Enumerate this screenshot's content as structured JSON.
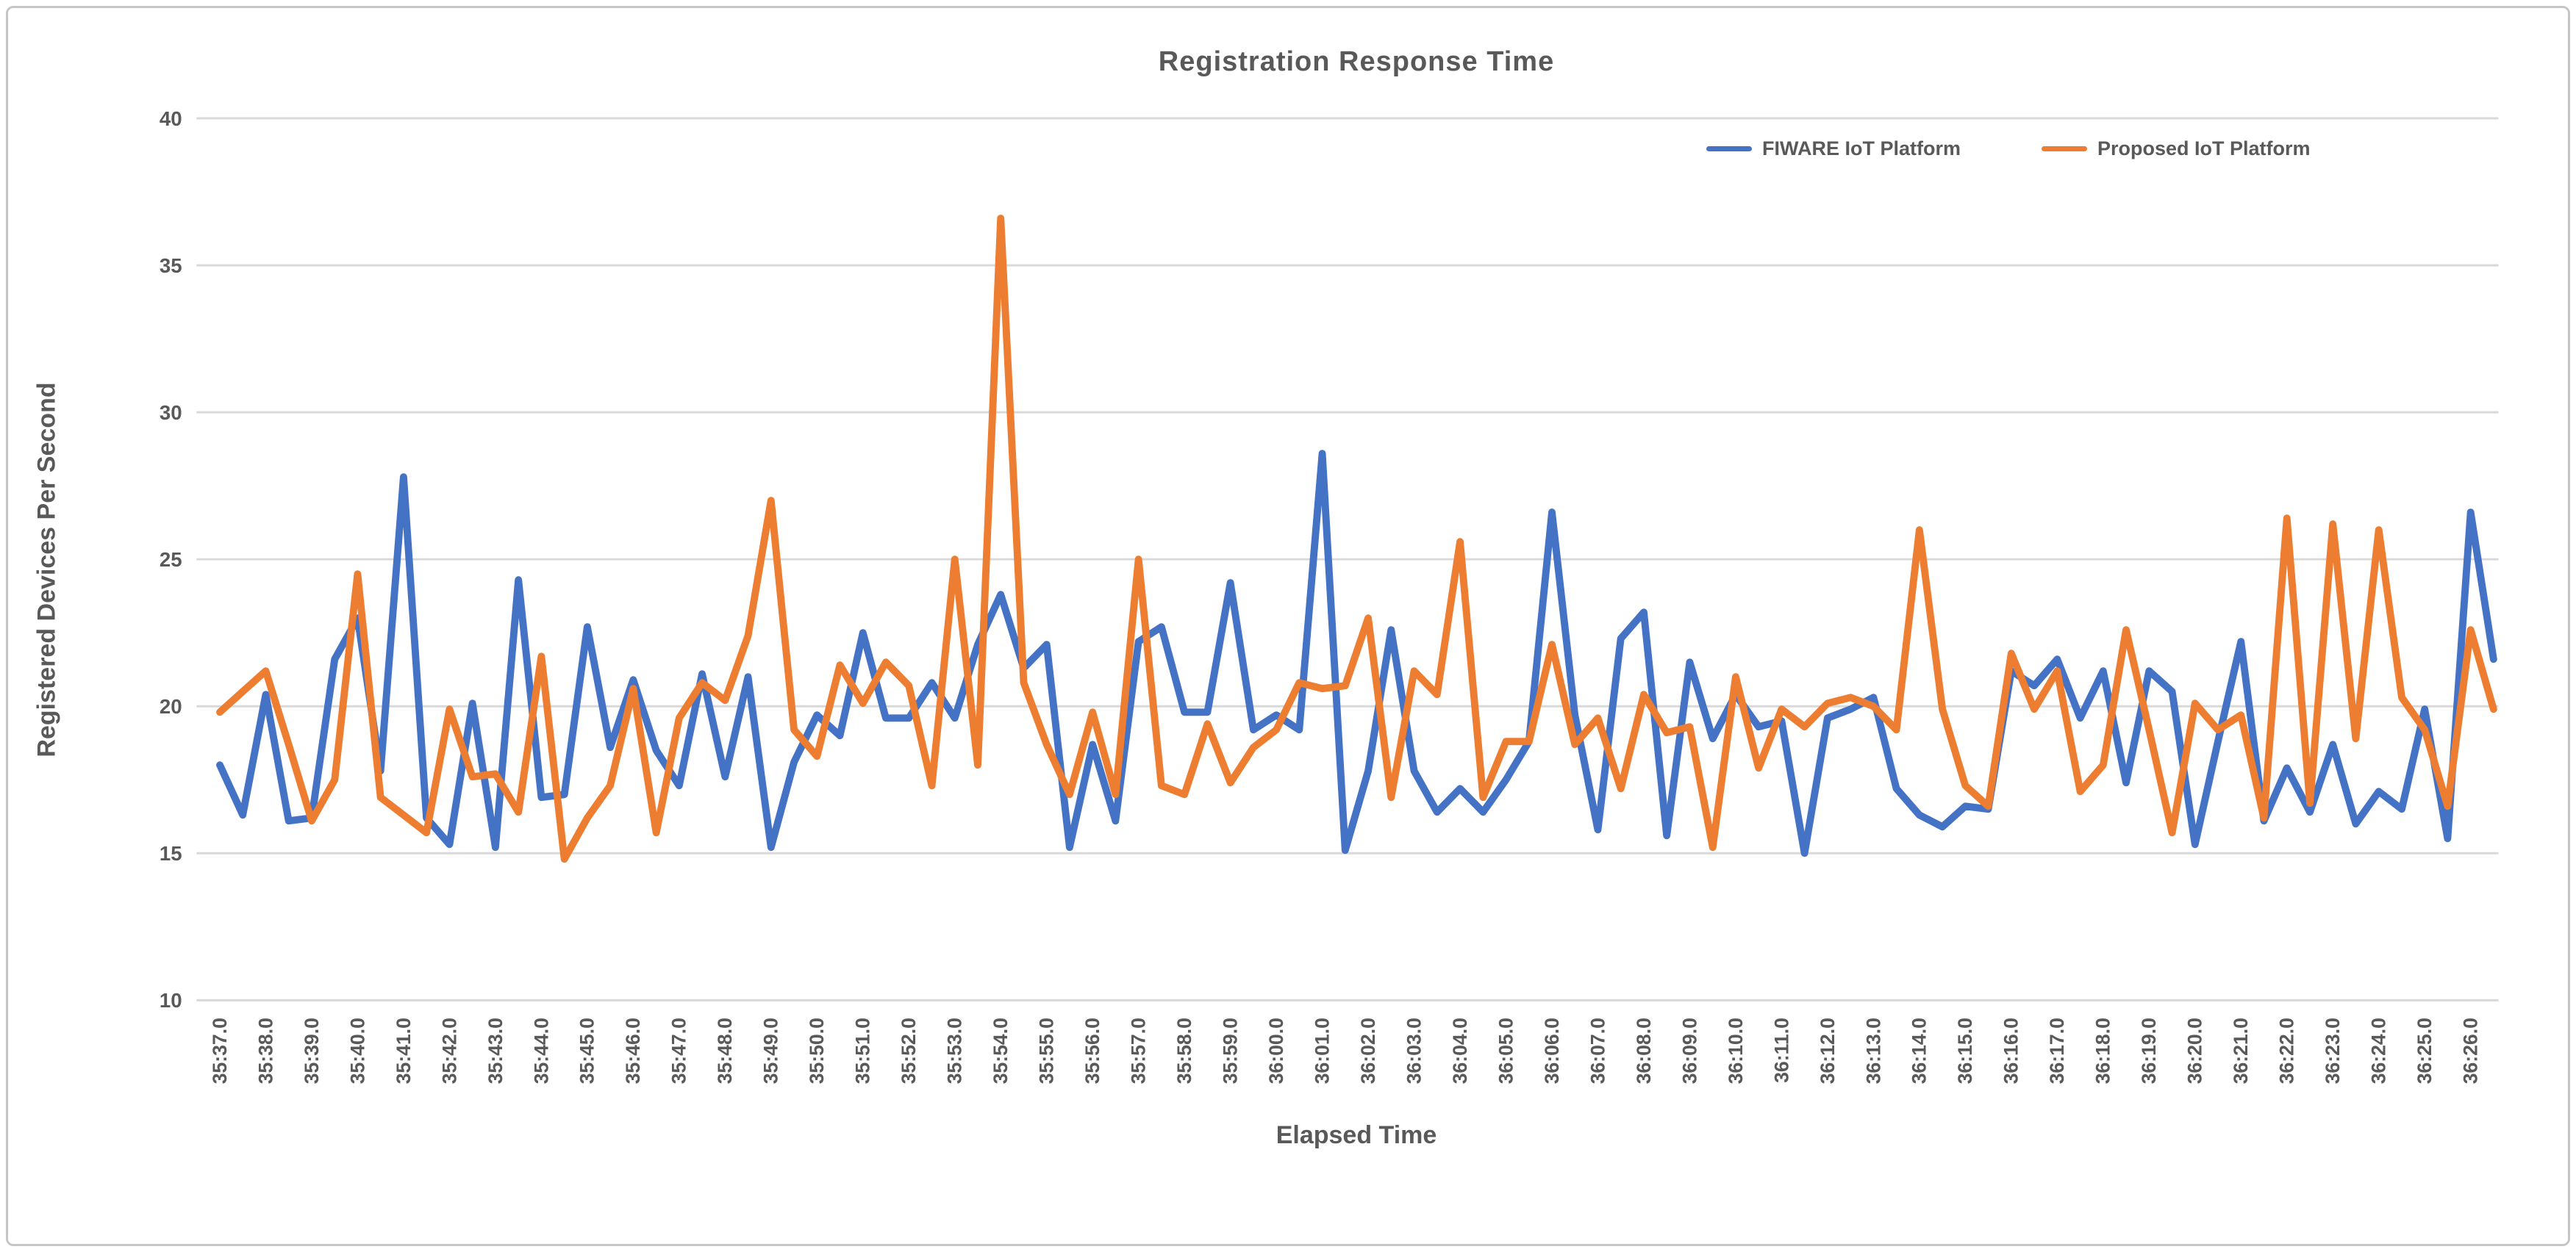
{
  "chart_data": {
    "type": "line",
    "title": "Registration Response Time",
    "xlabel": "Elapsed Time",
    "ylabel": "Registered Devices Per Second",
    "ylim": [
      10,
      40
    ],
    "ytick_step": 5,
    "yticks": [
      10,
      15,
      20,
      25,
      30,
      35,
      40
    ],
    "grid": true,
    "legend_position": "top-right",
    "grid_color": "#d9d9d9",
    "text_color": "#595959",
    "samples_per_label": 2,
    "x_labels": [
      "35:37.0",
      "35:38.0",
      "35:39.0",
      "35:40.0",
      "35:41.0",
      "35:42.0",
      "35:43.0",
      "35:44.0",
      "35:45.0",
      "35:46.0",
      "35:47.0",
      "35:48.0",
      "35:49.0",
      "35:50.0",
      "35:51.0",
      "35:52.0",
      "35:53.0",
      "35:54.0",
      "35:55.0",
      "35:56.0",
      "35:57.0",
      "35:58.0",
      "35:59.0",
      "36:00.0",
      "36:01.0",
      "36:02.0",
      "36:03.0",
      "36:04.0",
      "36:05.0",
      "36:06.0",
      "36:07.0",
      "36:08.0",
      "36:09.0",
      "36:10.0",
      "36:11.0",
      "36:12.0",
      "36:13.0",
      "36:14.0",
      "36:15.0",
      "36:16.0",
      "36:17.0",
      "36:18.0",
      "36:19.0",
      "36:20.0",
      "36:21.0",
      "36:22.0",
      "36:23.0",
      "36:24.0",
      "36:25.0",
      "36:26.0"
    ],
    "series": [
      {
        "name": "FIWARE IoT Platform",
        "color": "#4472C4",
        "values": [
          18.0,
          16.3,
          20.4,
          16.1,
          16.2,
          21.6,
          23.0,
          17.8,
          27.8,
          16.2,
          15.3,
          20.1,
          15.2,
          24.3,
          16.9,
          17.0,
          22.7,
          18.6,
          20.9,
          18.5,
          17.3,
          21.1,
          17.6,
          21.0,
          15.2,
          18.1,
          19.7,
          19.0,
          22.5,
          19.6,
          19.6,
          20.8,
          19.6,
          22.1,
          23.8,
          21.3,
          22.1,
          15.2,
          18.7,
          16.1,
          22.2,
          22.7,
          19.8,
          19.8,
          24.2,
          19.2,
          19.7,
          19.2,
          28.6,
          15.1,
          17.8,
          22.6,
          17.8,
          16.4,
          17.2,
          16.4,
          17.5,
          18.8,
          26.6,
          19.7,
          15.8,
          22.3,
          23.2,
          15.6,
          21.5,
          18.9,
          20.4,
          19.3,
          19.5,
          15.0,
          19.6,
          19.9,
          20.3,
          17.2,
          16.3,
          15.9,
          16.6,
          16.5,
          21.2,
          20.7,
          21.6,
          19.6,
          21.2,
          17.4,
          21.2,
          20.5,
          15.3,
          18.8,
          22.2,
          16.1,
          17.9,
          16.4,
          18.7,
          16.0,
          17.1,
          16.5,
          19.9,
          15.5,
          26.6,
          21.6
        ]
      },
      {
        "name": "Proposed IoT Platform",
        "color": "#ED7D31",
        "values": [
          19.8,
          20.5,
          21.2,
          18.7,
          16.1,
          17.5,
          24.5,
          16.9,
          16.3,
          15.7,
          19.9,
          17.6,
          17.7,
          16.4,
          21.7,
          14.8,
          16.2,
          17.3,
          20.6,
          15.7,
          19.6,
          20.8,
          20.2,
          22.4,
          27.0,
          19.2,
          18.3,
          21.4,
          20.1,
          21.5,
          20.7,
          17.3,
          25.0,
          18.0,
          36.6,
          20.8,
          18.7,
          17.0,
          19.8,
          17.0,
          25.0,
          17.3,
          17.0,
          19.4,
          17.4,
          18.6,
          19.2,
          20.8,
          20.6,
          20.7,
          23.0,
          16.9,
          21.2,
          20.4,
          25.6,
          16.9,
          18.8,
          18.8,
          22.1,
          18.7,
          19.6,
          17.2,
          20.4,
          19.1,
          19.3,
          15.2,
          21.0,
          17.9,
          19.9,
          19.3,
          20.1,
          20.3,
          20.0,
          19.2,
          26.0,
          19.9,
          17.3,
          16.6,
          21.8,
          19.9,
          21.2,
          17.1,
          18.0,
          22.6,
          19.2,
          15.7,
          20.1,
          19.2,
          19.7,
          16.2,
          26.4,
          16.7,
          26.2,
          18.9,
          26.0,
          20.3,
          19.2,
          16.6,
          22.6,
          19.9
        ]
      }
    ]
  }
}
